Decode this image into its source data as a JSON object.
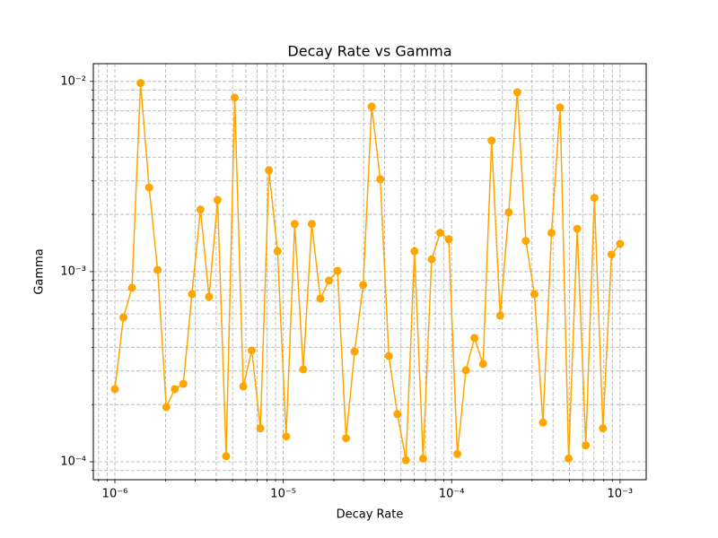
{
  "chart_data": {
    "type": "line",
    "title": "Decay Rate vs Gamma",
    "xlabel": "Decay Rate",
    "ylabel": "Gamma",
    "xscale": "log",
    "yscale": "log",
    "grid": true,
    "color": "#ffa500",
    "marker": "o",
    "xlim": [
      7.45e-07,
      0.00143
    ],
    "ylim": [
      8.05e-05,
      0.0124
    ],
    "xticks": [
      {
        "value": 1e-06,
        "label": "10⁻⁶"
      },
      {
        "value": 1e-05,
        "label": "10⁻⁵"
      },
      {
        "value": 0.0001,
        "label": "10⁻⁴"
      },
      {
        "value": 0.001,
        "label": "10⁻³"
      }
    ],
    "yticks": [
      {
        "value": 0.0001,
        "label": "10⁻⁴"
      },
      {
        "value": 0.001,
        "label": "10⁻³"
      },
      {
        "value": 0.01,
        "label": "10⁻²"
      }
    ],
    "xminorticks": [
      8e-07,
      9e-07,
      2e-06,
      3e-06,
      4e-06,
      5e-06,
      6e-06,
      7e-06,
      8e-06,
      9e-06,
      2e-05,
      3e-05,
      4e-05,
      5e-05,
      6e-05,
      7e-05,
      8e-05,
      9e-05,
      0.0002,
      0.0003,
      0.0004,
      0.0005,
      0.0006,
      0.0007,
      0.0008,
      0.0009
    ],
    "yminorticks": [
      9e-05,
      0.0002,
      0.0003,
      0.0004,
      0.0005,
      0.0006,
      0.0007,
      0.0008,
      0.0009,
      0.002,
      0.003,
      0.004,
      0.005,
      0.006,
      0.007,
      0.008,
      0.009
    ],
    "x": [
      1e-06,
      1.124e-06,
      1.263e-06,
      1.421e-06,
      1.597e-06,
      1.795e-06,
      2.019e-06,
      2.269e-06,
      2.551e-06,
      2.868e-06,
      3.224e-06,
      3.624e-06,
      4.074e-06,
      4.58e-06,
      5.148e-06,
      5.787e-06,
      6.505e-06,
      7.313e-06,
      8.221e-06,
      9.25e-06,
      1.04e-05,
      1.169e-05,
      1.314e-05,
      1.477e-05,
      1.661e-05,
      1.867e-05,
      2.099e-05,
      2.36e-05,
      2.652e-05,
      2.982e-05,
      3.352e-05,
      3.768e-05,
      4.236e-05,
      4.762e-05,
      5.353e-05,
      6.017e-05,
      6.766e-05,
      7.606e-05,
      8.55e-05,
      9.611e-05,
      0.0001081,
      0.0001215,
      0.0001366,
      0.0001536,
      0.0001727,
      0.0001941,
      0.0002183,
      0.0002453,
      0.0002759,
      0.00031,
      0.0003486,
      0.0003918,
      0.0004406,
      0.0004953,
      0.0005569,
      0.000626,
      0.0007039,
      0.0007912,
      0.0008896,
      0.001
    ],
    "values": [
      0.000241,
      0.000574,
      0.000822,
      0.0098,
      0.00277,
      0.00102,
      0.000194,
      0.000241,
      0.000257,
      0.000762,
      0.00212,
      0.000738,
      0.00238,
      0.000107,
      0.00822,
      0.000249,
      0.000385,
      0.00015,
      0.00341,
      0.00128,
      0.000136,
      0.00178,
      0.000306,
      0.00178,
      0.000722,
      0.000897,
      0.00101,
      0.000133,
      0.00038,
      0.00085,
      0.00738,
      0.00306,
      0.00036,
      0.000178,
      0.000102,
      0.00128,
      0.000104,
      0.00116,
      0.0016,
      0.00148,
      0.00011,
      0.000303,
      0.000448,
      0.000327,
      0.00489,
      0.000587,
      0.00205,
      0.00877,
      0.00145,
      0.000762,
      0.000161,
      0.0016,
      0.0073,
      0.000104,
      0.00168,
      0.000122,
      0.00244,
      0.00015,
      0.00123,
      0.0014
    ]
  }
}
